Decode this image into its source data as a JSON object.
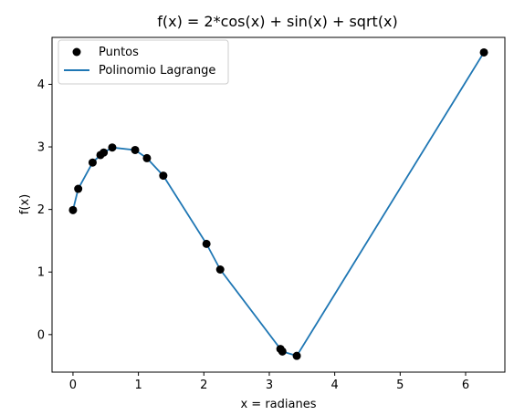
{
  "chart_data": {
    "type": "line",
    "title": "f(x) = 2*cos(x) + sin(x) + sqrt(x)",
    "xlabel": "x = radianes",
    "ylabel": "f(x)",
    "xlim": [
      -0.32,
      6.6
    ],
    "ylim": [
      -0.6,
      4.75
    ],
    "xticks": [
      0,
      1,
      2,
      3,
      4,
      5,
      6
    ],
    "yticks": [
      0,
      1,
      2,
      3,
      4
    ],
    "grid": false,
    "legend_position": "top-left",
    "colors": {
      "points": "#000000",
      "line": "#1f77b4"
    },
    "series": [
      {
        "name": "Puntos",
        "kind": "scatter",
        "x": [
          0.0,
          0.08,
          0.3,
          0.42,
          0.47,
          0.6,
          0.95,
          1.13,
          1.38,
          2.04,
          2.25,
          3.17,
          3.2,
          3.42,
          6.28
        ],
        "y": [
          1.99,
          2.33,
          2.75,
          2.87,
          2.91,
          2.99,
          2.95,
          2.82,
          2.54,
          1.45,
          1.04,
          -0.23,
          -0.27,
          -0.34,
          4.51
        ]
      },
      {
        "name": "Polinomio Lagrange",
        "kind": "line",
        "x": [
          0.0,
          0.08,
          0.3,
          0.42,
          0.47,
          0.6,
          0.95,
          1.13,
          1.38,
          2.04,
          2.25,
          3.17,
          3.2,
          3.42,
          6.28
        ],
        "y": [
          1.99,
          2.33,
          2.75,
          2.87,
          2.91,
          2.99,
          2.95,
          2.82,
          2.54,
          1.45,
          1.04,
          -0.23,
          -0.27,
          -0.34,
          4.51
        ]
      }
    ]
  }
}
